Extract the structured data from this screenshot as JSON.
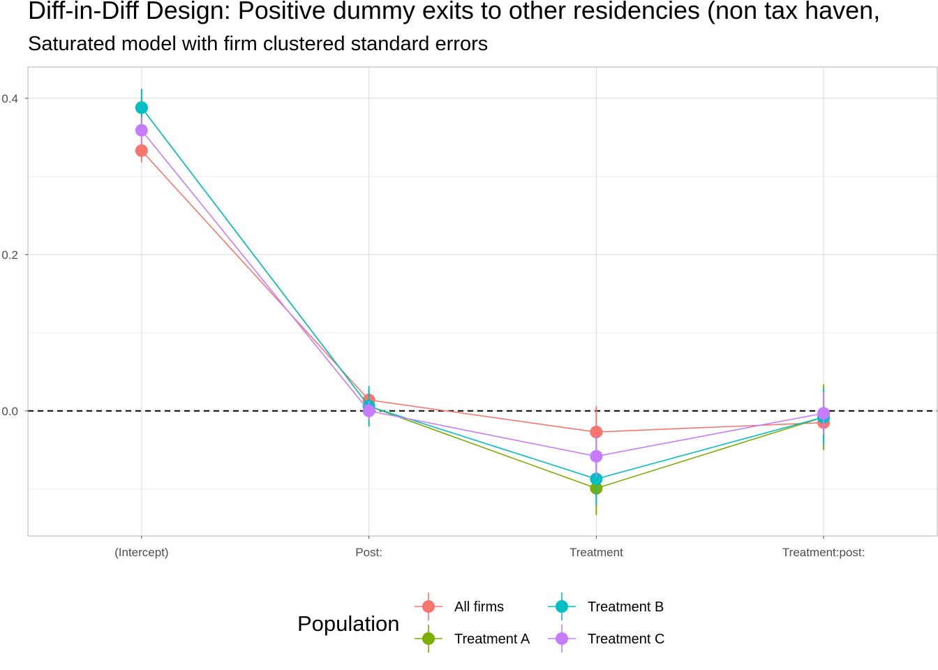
{
  "title": "Diff-in-Diff Design: Positive dummy exits to other residencies (non tax haven,",
  "subtitle": "Saturated model with firm clustered standard errors",
  "chart_data": {
    "type": "line",
    "categories": [
      "(Intercept)",
      "Post:",
      "Treatment",
      "Treatment:post:"
    ],
    "y_ticks": [
      "0.0",
      "0.2",
      "0.4"
    ],
    "y_tick_values": [
      0.0,
      0.2,
      0.4
    ],
    "ylim": [
      -0.16,
      0.44
    ],
    "reference_line": 0.0,
    "grid": true,
    "legend_title": "Population",
    "legend_position": "bottom",
    "series": [
      {
        "name": "All firms",
        "color": "#F8766D",
        "values": [
          0.333,
          0.014,
          -0.027,
          -0.015
        ],
        "lower": [
          0.318,
          0.002,
          -0.06,
          -0.025
        ],
        "upper": [
          0.348,
          0.026,
          0.006,
          -0.005
        ]
      },
      {
        "name": "Treatment A",
        "color": "#7CAE00",
        "values": [
          0.388,
          0.006,
          -0.099,
          -0.008
        ],
        "lower": [
          0.366,
          -0.015,
          -0.133,
          -0.05
        ],
        "upper": [
          0.41,
          0.027,
          -0.065,
          0.034
        ]
      },
      {
        "name": "Treatment B",
        "color": "#00BFC4",
        "values": [
          0.388,
          0.006,
          -0.087,
          -0.008
        ],
        "lower": [
          0.365,
          -0.02,
          -0.12,
          -0.044
        ],
        "upper": [
          0.412,
          0.032,
          -0.054,
          0.028
        ]
      },
      {
        "name": "Treatment C",
        "color": "#C77CFF",
        "values": [
          0.359,
          0.0,
          -0.058,
          -0.003
        ],
        "lower": [
          0.342,
          -0.012,
          -0.085,
          -0.03
        ],
        "upper": [
          0.376,
          0.012,
          -0.031,
          0.024
        ]
      }
    ]
  }
}
